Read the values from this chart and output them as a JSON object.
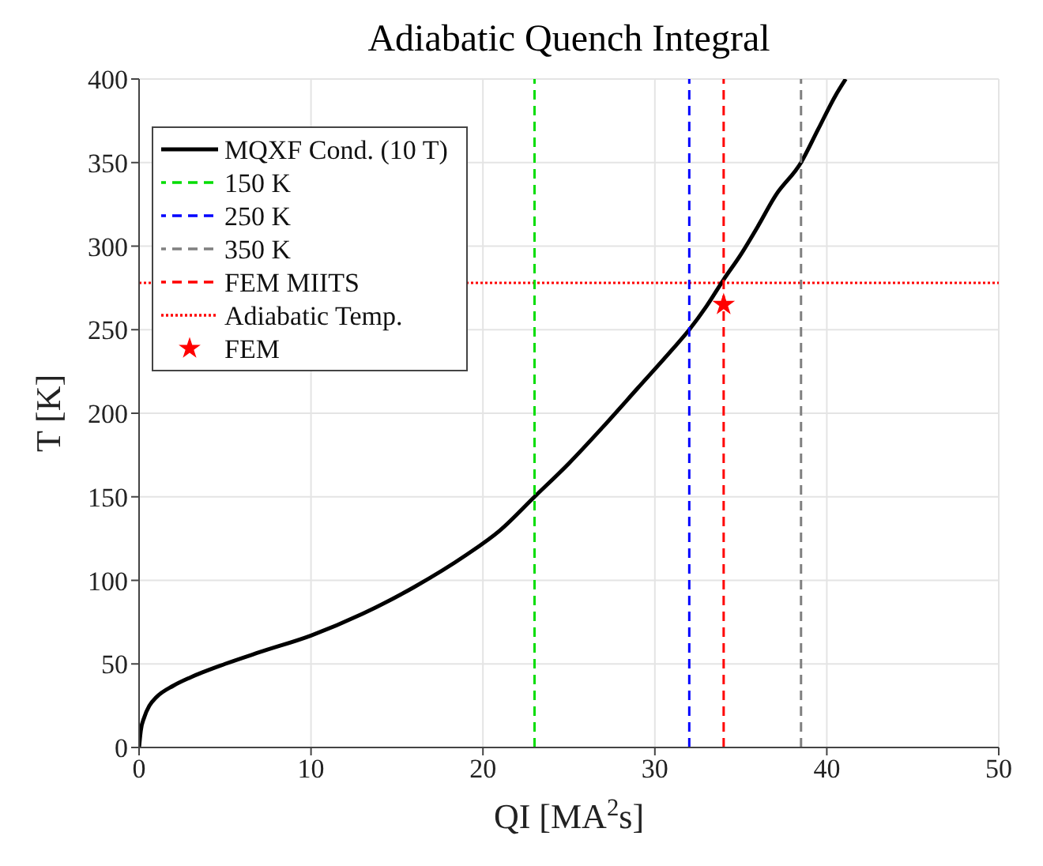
{
  "chart_data": {
    "type": "line",
    "title": "Adiabatic Quench Integral",
    "xlabel": "QI [MA$^{2}$s]",
    "ylabel": "T [K]",
    "xlim": [
      0,
      50
    ],
    "xticks": [
      0,
      10,
      20,
      30,
      40,
      50
    ],
    "ylim": [
      0,
      400
    ],
    "yticks": [
      0,
      50,
      100,
      150,
      200,
      250,
      300,
      350,
      400
    ],
    "grid": true,
    "legend": "top left",
    "series": [
      {
        "name": "MQXF Cond. (10 T)",
        "type": "line",
        "color": "#000000",
        "line_style": "solid",
        "marker": "none",
        "x": [
          0,
          0.1,
          0.3,
          0.6,
          1,
          2,
          3,
          5,
          7,
          10,
          13,
          16,
          19,
          21,
          23,
          25,
          27,
          29,
          31,
          32,
          33,
          34,
          35,
          36,
          37,
          38.5,
          39.5,
          40.5,
          41.1
        ],
        "values": [
          0,
          10,
          18,
          25,
          30,
          37,
          42,
          50,
          57,
          67,
          80,
          96,
          115,
          130,
          150,
          170,
          192,
          215,
          238,
          250,
          264,
          280,
          295,
          312,
          330,
          350,
          370,
          390,
          400
        ]
      },
      {
        "name": "150 K",
        "color": "#00dd00",
        "line_style": "dashed",
        "marker": "none",
        "x": [
          23,
          23
        ],
        "values": [
          0,
          400
        ]
      },
      {
        "name": "250 K",
        "color": "#0000ff",
        "line_style": "dashed",
        "marker": "none",
        "x": [
          32,
          32
        ],
        "values": [
          0,
          400
        ]
      },
      {
        "name": "350 K",
        "color": "#808080",
        "line_style": "dashed",
        "marker": "none",
        "x": [
          38.5,
          38.5
        ],
        "values": [
          0,
          400
        ]
      },
      {
        "name": "FEM MIITS",
        "color": "#ff0000",
        "line_style": "dashed",
        "marker": "none",
        "x": [
          34,
          34
        ],
        "values": [
          0,
          400
        ]
      },
      {
        "name": "FEM",
        "type": "scatter",
        "color": "#ff0000",
        "marker": "star",
        "x": [
          34
        ],
        "values": [
          265
        ]
      }
    ],
    "ref_lines": [
      {
        "axis": "y",
        "value": 278,
        "label": "Adiabatic Temp.",
        "color": "#ff0000",
        "line_style": "dotted"
      }
    ]
  }
}
